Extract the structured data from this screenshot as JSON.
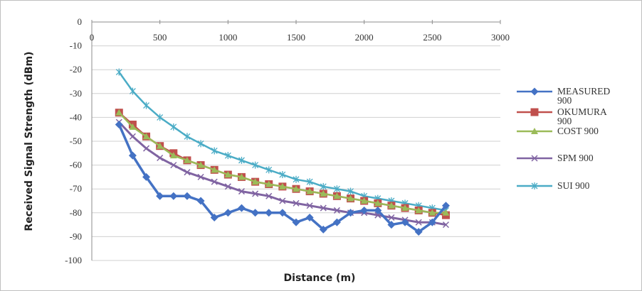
{
  "chart_data": {
    "type": "line",
    "title": "",
    "xlabel": "Distance (m)",
    "ylabel": "Received Signal Strength (dBm)",
    "xlim": [
      0,
      3000
    ],
    "ylim": [
      -100,
      0
    ],
    "x_ticks": [
      "0",
      "500",
      "1000",
      "1500",
      "2000",
      "2500",
      "3000"
    ],
    "y_ticks": [
      "0",
      "-10",
      "-20",
      "-30",
      "-40",
      "-50",
      "-60",
      "-70",
      "-80",
      "-90",
      "-100"
    ],
    "grid": "horizontal",
    "x_axis_position": "top",
    "legend_position": "right",
    "series": [
      {
        "name": "MEASURED 900",
        "color": "#4472c4",
        "marker": "diamond",
        "x": [
          200,
          300,
          400,
          500,
          600,
          700,
          800,
          900,
          1000,
          1100,
          1200,
          1300,
          1400,
          1500,
          1600,
          1700,
          1800,
          1900,
          2000,
          2100,
          2200,
          2300,
          2400,
          2500,
          2600
        ],
        "y": [
          -43,
          -56,
          -65,
          -73,
          -73,
          -73,
          -75,
          -82,
          -80,
          -78,
          -80,
          -80,
          -80,
          -84,
          -82,
          -87,
          -84,
          -80,
          -79,
          -79,
          -85,
          -84,
          -88,
          -84,
          -77
        ]
      },
      {
        "name": "OKUMURA 900",
        "color": "#c0504d",
        "marker": "square",
        "x": [
          200,
          300,
          400,
          500,
          600,
          700,
          800,
          900,
          1000,
          1100,
          1200,
          1300,
          1400,
          1500,
          1600,
          1700,
          1800,
          1900,
          2000,
          2100,
          2200,
          2300,
          2400,
          2500,
          2600
        ],
        "y": [
          -38,
          -43,
          -48,
          -52,
          -55,
          -58,
          -60,
          -62,
          -64,
          -65,
          -67,
          -68,
          -69,
          -70,
          -71,
          -72,
          -73,
          -74,
          -75,
          -76,
          -77,
          -78,
          -79,
          -80,
          -81
        ]
      },
      {
        "name": "COST 900",
        "color": "#9bbb59",
        "marker": "triangle",
        "x": [
          200,
          300,
          400,
          500,
          600,
          700,
          800,
          900,
          1000,
          1100,
          1200,
          1300,
          1400,
          1500,
          1600,
          1700,
          1800,
          1900,
          2000,
          2100,
          2200,
          2300,
          2400,
          2500,
          2600
        ],
        "y": [
          -38,
          -44,
          -48,
          -52,
          -56,
          -58,
          -60,
          -62,
          -64,
          -65,
          -67,
          -68,
          -69,
          -70,
          -71,
          -72,
          -73,
          -74,
          -75,
          -76,
          -77,
          -78,
          -79,
          -80,
          -80
        ]
      },
      {
        "name": "SPM 900",
        "color": "#8064a2",
        "marker": "x",
        "x": [
          200,
          300,
          400,
          500,
          600,
          700,
          800,
          900,
          1000,
          1100,
          1200,
          1300,
          1400,
          1500,
          1600,
          1700,
          1800,
          1900,
          2000,
          2100,
          2200,
          2300,
          2400,
          2500,
          2600
        ],
        "y": [
          -42,
          -48,
          -53,
          -57,
          -60,
          -63,
          -65,
          -67,
          -69,
          -71,
          -72,
          -73,
          -75,
          -76,
          -77,
          -78,
          -79,
          -80,
          -80,
          -81,
          -82,
          -83,
          -84,
          -84,
          -85
        ]
      },
      {
        "name": "SUI 900",
        "color": "#4bacc6",
        "marker": "star",
        "x": [
          200,
          300,
          400,
          500,
          600,
          700,
          800,
          900,
          1000,
          1100,
          1200,
          1300,
          1400,
          1500,
          1600,
          1700,
          1800,
          1900,
          2000,
          2100,
          2200,
          2300,
          2400,
          2500,
          2600
        ],
        "y": [
          -21,
          -29,
          -35,
          -40,
          -44,
          -48,
          -51,
          -54,
          -56,
          -58,
          -60,
          -62,
          -64,
          -66,
          -67,
          -69,
          -70,
          -71,
          -73,
          -74,
          -75,
          -76,
          -77,
          -78,
          -79
        ]
      }
    ]
  }
}
